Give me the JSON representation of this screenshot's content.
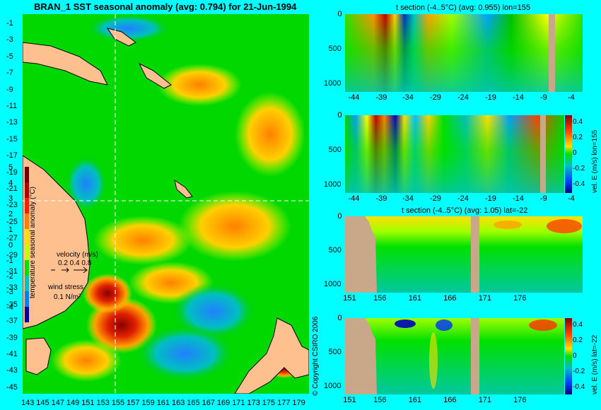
{
  "map": {
    "title": "BRAN_1 SST seasonal anomaly (avg: 0.794) for 21-Jun-1994",
    "lat_labels": [
      "-1",
      "-3",
      "-5",
      "-7",
      "-9",
      "-11",
      "-13",
      "-15",
      "-17",
      "-19",
      "-21",
      "-23",
      "-25",
      "-27",
      "-29",
      "-31",
      "-33",
      "-35",
      "-37",
      "-39",
      "-41",
      "-43",
      "-45"
    ],
    "lon_labels": [
      "143",
      "145",
      "147",
      "149",
      "151",
      "153",
      "155",
      "157",
      "159",
      "161",
      "163",
      "165",
      "167",
      "169",
      "171",
      "173",
      "175",
      "177",
      "179"
    ],
    "colorbar": {
      "label": "temperature seasonal anomaly (°C)",
      "ticks": [
        "5",
        "4",
        "3",
        "2",
        "1",
        "0",
        "-1",
        "-2",
        "-3",
        "-4"
      ],
      "colors": [
        "#6a0000",
        "#b00000",
        "#ff2000",
        "#ff8000",
        "#ffe000",
        "#c0ff00",
        "#00e000",
        "#00c0c0",
        "#0080ff",
        "#0000a0"
      ]
    },
    "velocity_legend": {
      "label": "velocity (m/s)",
      "values": "0.2 0.4 0.8"
    },
    "wind_legend": {
      "label": "wind stress",
      "value": "0.1 N/m²"
    },
    "crosshair": {
      "lon": 155,
      "lat": -22
    }
  },
  "copyright": "© Copyright CSIRO 2006",
  "panels": [
    {
      "title": "t section (-4..5°C) (avg: 0.955) lon=155",
      "x_ticks": [
        "-44",
        "-39",
        "-34",
        "-29",
        "-24",
        "-19",
        "-14",
        "-9",
        "-4"
      ],
      "y_ticks": [
        "0",
        "500",
        "1000"
      ]
    },
    {
      "title": "",
      "x_ticks": [
        "-44",
        "-39",
        "-34",
        "-29",
        "-24",
        "-19",
        "-14",
        "-9",
        "-4"
      ],
      "y_ticks": [
        "0",
        "500",
        "1000"
      ],
      "colorbar_label": "vel. E (m/s) lon=155",
      "cb_ticks": [
        "0.4",
        "0.2",
        "0",
        "-0.2",
        "-0.4"
      ]
    },
    {
      "title": "t section (-4..5°C) (avg: 1.05) lat=-22",
      "x_ticks": [
        "151",
        "156",
        "161",
        "166",
        "171",
        "176"
      ],
      "y_ticks": [
        "0",
        "500",
        "1000"
      ]
    },
    {
      "title": "",
      "x_ticks": [
        "151",
        "156",
        "161",
        "166",
        "171",
        "176"
      ],
      "y_ticks": [
        "0",
        "500",
        "1000"
      ],
      "colorbar_label": "vel. E (m/s) lat=-22",
      "cb_ticks": [
        "0.4",
        "0.2",
        "0",
        "-0.2",
        "-0.4"
      ]
    }
  ]
}
